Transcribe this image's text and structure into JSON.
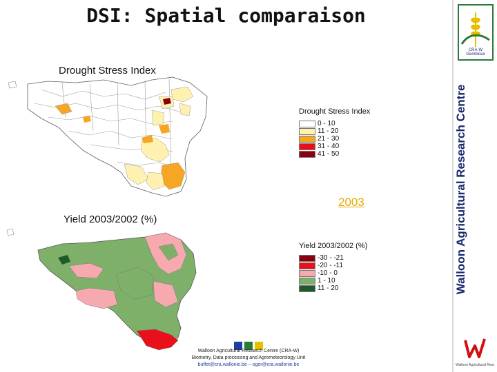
{
  "slide": {
    "title": "DSI:  Spatial comparaison",
    "section_top_label": "Drought Stress Index",
    "section_bottom_label": "Yield  2003/2002 (%)",
    "year_label": "2003",
    "vertical_text": "Walloon Agricultural Research Centre"
  },
  "legend_dsi": {
    "title": "Drought Stress Index",
    "items": [
      {
        "label": "0 - 10",
        "color": "#ffffff"
      },
      {
        "label": "11 - 20",
        "color": "#fff2b0"
      },
      {
        "label": "21 - 30",
        "color": "#f5a623"
      },
      {
        "label": "31 - 40",
        "color": "#e8101a"
      },
      {
        "label": "41 - 50",
        "color": "#8a0010"
      }
    ]
  },
  "legend_yield": {
    "title": "Yield  2003/2002 (%)",
    "items": [
      {
        "label": "-30 - -21",
        "color": "#8a0010"
      },
      {
        "label": "-20 - -11",
        "color": "#e8101a"
      },
      {
        "label": "-10 - 0",
        "color": "#f7a9b0"
      },
      {
        "label": "1 - 10",
        "color": "#7fb069"
      },
      {
        "label": "11 - 20",
        "color": "#1f5a2a"
      }
    ]
  },
  "logo_top": {
    "text": "CRA-W Gembloux"
  },
  "logo_bottom": {
    "text": "Walloon Agricultural Research Centre"
  },
  "footer": {
    "line1": "Walloon Agricultural Research Centre (CRA-W)",
    "line2": "Biometry, Data processing and Agrometeorology Unit",
    "line3": "buffet@cra.wallonie.be – oger@cra.wallonie.be"
  },
  "colors": {
    "map_base_top": "#fff2b0",
    "map_base_bottom": "#7fb069",
    "accent_blue": "#1f3fa0",
    "accent_green": "#2a7a3a",
    "accent_yellow": "#e6c000"
  }
}
